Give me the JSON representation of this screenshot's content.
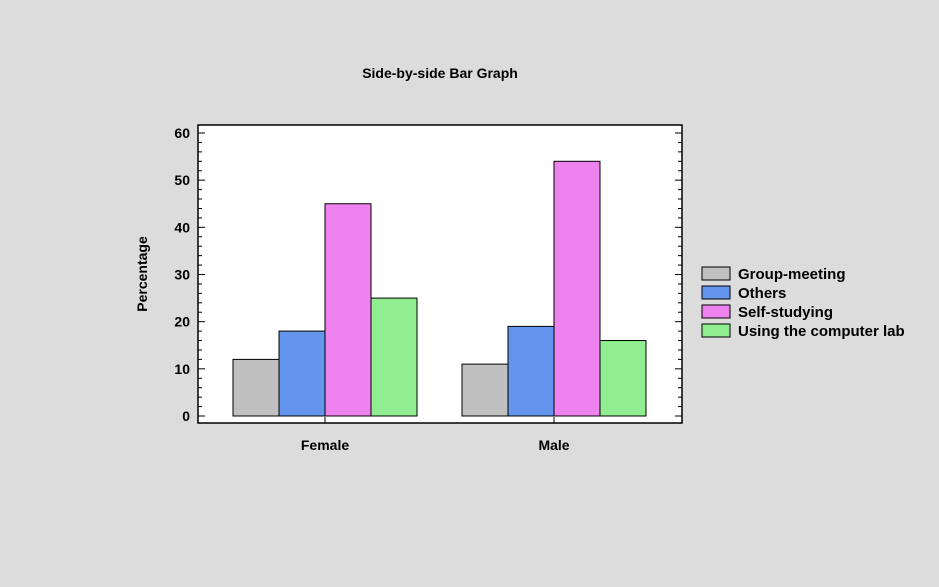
{
  "chart_data": {
    "type": "bar",
    "title": "Side-by-side Bar Graph",
    "xlabel": "",
    "ylabel": "Percentage",
    "ylim": [
      0,
      60
    ],
    "yticks": [
      0,
      10,
      20,
      30,
      40,
      50,
      60
    ],
    "grid": false,
    "legend_placement": "right",
    "categories": [
      "Female",
      "Male"
    ],
    "series": [
      {
        "name": "Group-meeting",
        "color": "#c0c0c0",
        "values": [
          12,
          11
        ]
      },
      {
        "name": "Others",
        "color": "#6495ed",
        "values": [
          18,
          19
        ]
      },
      {
        "name": "Self-studying",
        "color": "#ee82ee",
        "values": [
          45,
          54
        ]
      },
      {
        "name": "Using the computer lab",
        "color": "#90ee90",
        "values": [
          25,
          16
        ]
      }
    ]
  }
}
